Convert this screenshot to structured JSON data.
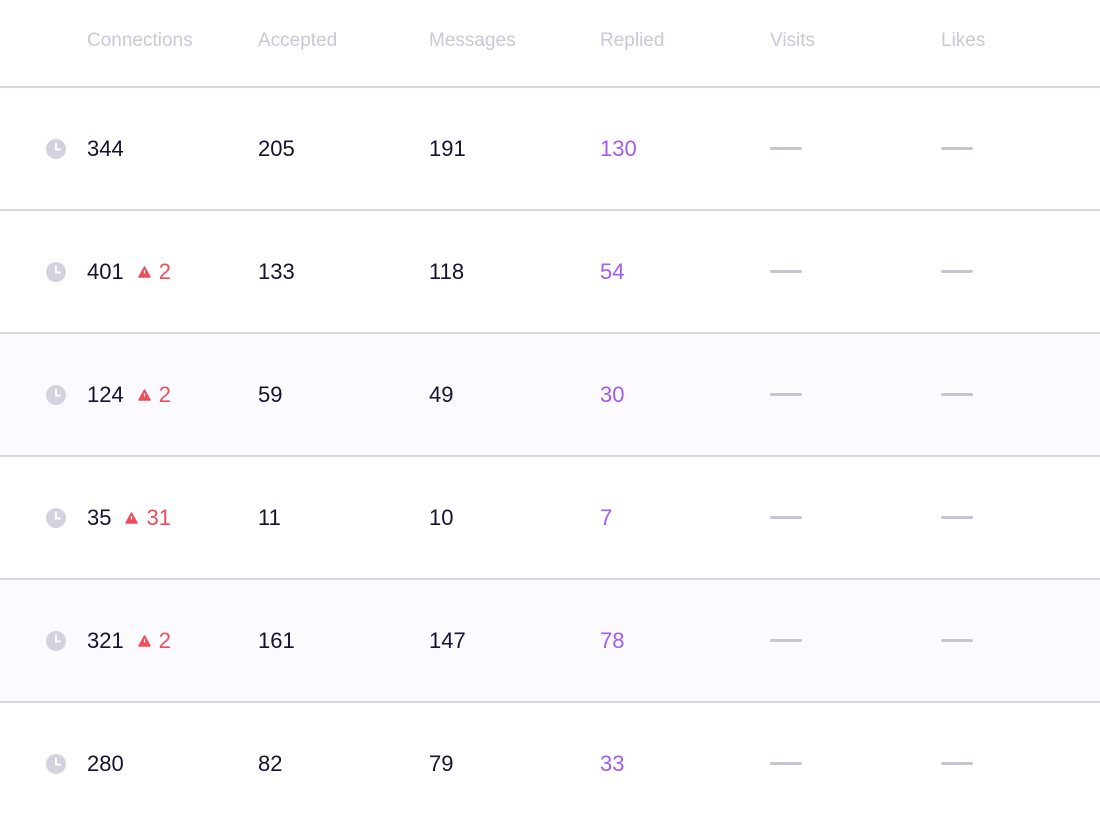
{
  "table": {
    "columns": [
      "Connections",
      "Accepted",
      "Messages",
      "Replied",
      "Visits",
      "Likes"
    ],
    "rows": [
      {
        "connections": 344,
        "accepted": 205,
        "messages": 191,
        "replied": 130
      },
      {
        "connections": 401,
        "warning": 2,
        "accepted": 133,
        "messages": 118,
        "replied": 54
      },
      {
        "connections": 124,
        "warning": 2,
        "accepted": 59,
        "messages": 49,
        "replied": 30
      },
      {
        "connections": 35,
        "warning": 31,
        "accepted": 11,
        "messages": 10,
        "replied": 7
      },
      {
        "connections": 321,
        "warning": 2,
        "accepted": 161,
        "messages": 147,
        "replied": 78
      },
      {
        "connections": 280,
        "accepted": 82,
        "messages": 79,
        "replied": 33
      }
    ]
  }
}
